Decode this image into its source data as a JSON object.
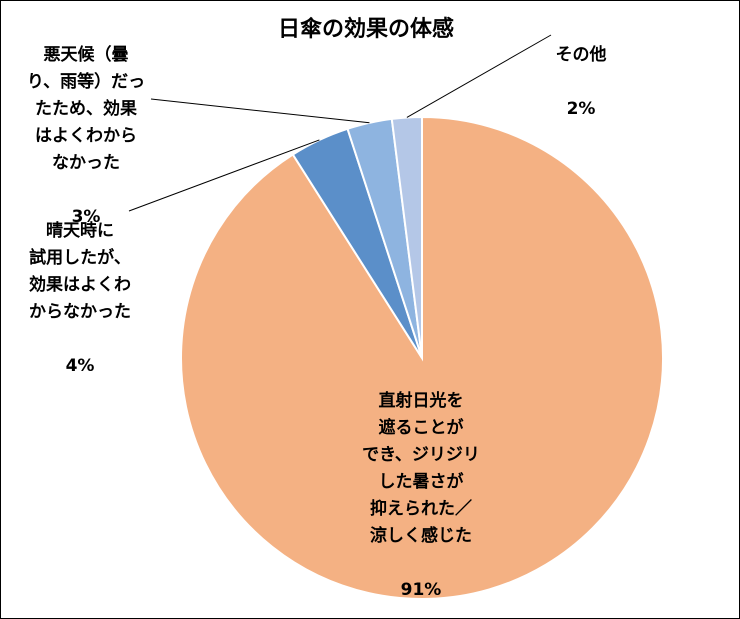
{
  "chart_data": {
    "type": "pie",
    "title": "日傘の効果の体感",
    "start": "12 o'clock, clockwise",
    "slices": [
      {
        "label": "直射日光を\n遮ることが\nでき、ジリジリ\nした暑さが\n抑えられた／\n涼しく感じた",
        "value": 91,
        "pct": "91%",
        "color": "#F4B183"
      },
      {
        "label": "晴天時に\n試用したが、\n効果はよくわ\nからなかった",
        "value": 4,
        "pct": "4%",
        "color": "#5B8FC9"
      },
      {
        "label": "悪天候（曇\nり、雨等）だっ\nたため、効果\nはよくわから\nなかった",
        "value": 3,
        "pct": "3%",
        "color": "#8EB4E0"
      },
      {
        "label": "その他",
        "value": 2,
        "pct": "2%",
        "color": "#B4C7E7"
      }
    ]
  }
}
